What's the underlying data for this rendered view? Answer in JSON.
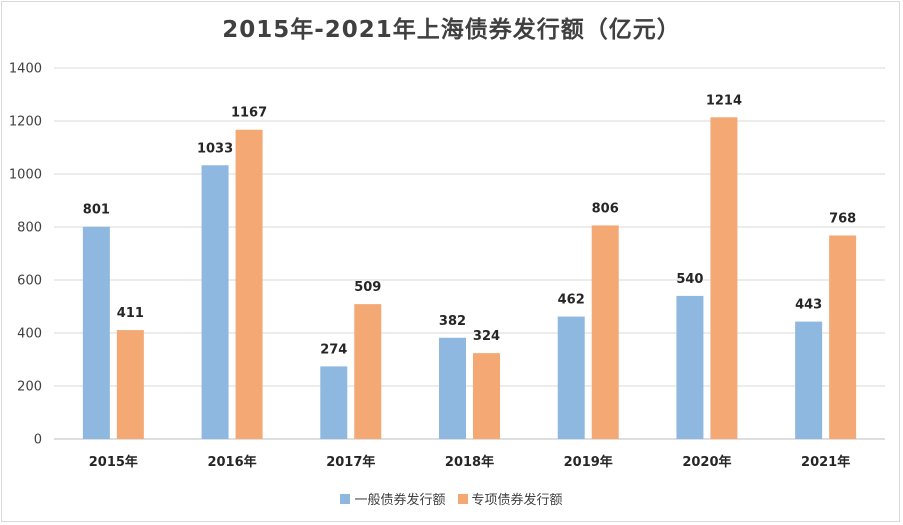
{
  "chart_data": {
    "type": "bar",
    "title": "2015年-2021年上海债券发行额（亿元）",
    "categories": [
      "2015年",
      "2016年",
      "2017年",
      "2018年",
      "2019年",
      "2020年",
      "2021年"
    ],
    "series": [
      {
        "name": "一般债券发行额",
        "values": [
          801,
          1033,
          274,
          382,
          462,
          540,
          443
        ],
        "color": "#8fb8e0"
      },
      {
        "name": "专项债券发行额",
        "values": [
          411,
          1167,
          509,
          324,
          806,
          1214,
          768
        ],
        "color": "#f4a874"
      }
    ],
    "ylim": [
      0,
      1400
    ],
    "yticks": [
      0,
      200,
      400,
      600,
      800,
      1000,
      1200,
      1400
    ],
    "xlabel": "",
    "ylabel": "",
    "grid": true,
    "legend": "bottom-center"
  }
}
